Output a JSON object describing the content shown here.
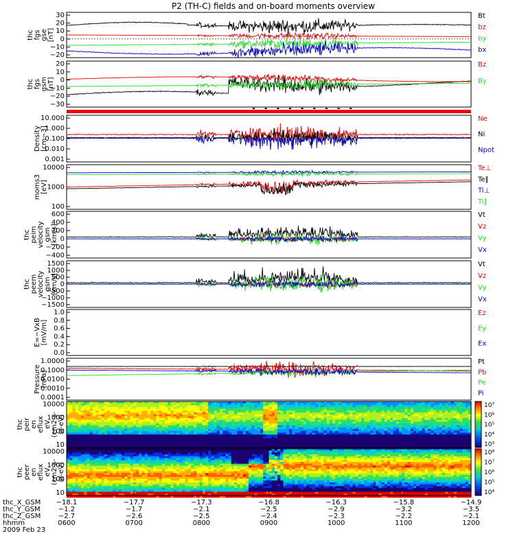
{
  "title": "P2 (TH-C) fields and on-board moments overview",
  "colors": {
    "black": "#000000",
    "red": "#ee0000",
    "green": "#22dd22",
    "blue": "#0000cc"
  },
  "panels": [
    {
      "id": "fgs-gse",
      "ylabel": [
        "thc",
        "fgs",
        "gse",
        "[nT]"
      ],
      "yticks": [
        "30",
        "20",
        "10",
        "0",
        "−10",
        "−20"
      ],
      "legend": [
        {
          "label": "Bt",
          "color": "black"
        },
        {
          "label": "bz",
          "color": "red"
        },
        {
          "label": "by",
          "color": "green"
        },
        {
          "label": "bx",
          "color": "blue"
        }
      ]
    },
    {
      "id": "fgs-gsm",
      "ylabel": [
        "thc",
        "fgs",
        "gsm",
        "[nT]"
      ],
      "yticks": [
        "20",
        "10",
        "0",
        "−10",
        "−20",
        "−30"
      ],
      "legend": [
        {
          "label": "Bz",
          "color": "red"
        },
        {
          "label": "By",
          "color": "green"
        }
      ]
    },
    {
      "id": "density",
      "ylabel": [
        "Density",
        "[cm−3]"
      ],
      "yticks": [
        "10.000",
        "1.000",
        "0.100",
        "0.010",
        "0.001"
      ],
      "legend": [
        {
          "label": "Ne",
          "color": "red"
        },
        {
          "label": "Ni",
          "color": "black"
        },
        {
          "label": "Npot",
          "color": "blue"
        }
      ]
    },
    {
      "id": "temperature",
      "ylabel": [
        "moms3",
        "[eV]"
      ],
      "yticks": [
        "10000",
        "1000",
        "100"
      ],
      "legend": [
        {
          "label": "Te⊥",
          "color": "red"
        },
        {
          "label": "Te∥",
          "color": "black"
        },
        {
          "label": "Ti⊥",
          "color": "blue"
        },
        {
          "label": "Ti∥",
          "color": "green"
        }
      ]
    },
    {
      "id": "peim-velocity",
      "ylabel": [
        "thc",
        "peim",
        "velocity",
        "gsm",
        "[km/s]"
      ],
      "yticks": [
        "600",
        "400",
        "200",
        "0",
        "−200",
        "−400"
      ],
      "legend": [
        {
          "label": "Vt",
          "color": "black"
        },
        {
          "label": "Vz",
          "color": "red"
        },
        {
          "label": "Vy",
          "color": "green"
        },
        {
          "label": "Vx",
          "color": "blue"
        }
      ]
    },
    {
      "id": "peem-velocity",
      "ylabel": [
        "thc",
        "peem",
        "velocity",
        "gsm",
        "[km/s]"
      ],
      "yticks": [
        "1500",
        "1000",
        "500",
        "0",
        "−500",
        "−1000",
        "−1500"
      ],
      "legend": [
        {
          "label": "Vt",
          "color": "black"
        },
        {
          "label": "Vz",
          "color": "red"
        },
        {
          "label": "Vy",
          "color": "green"
        },
        {
          "label": "Vx",
          "color": "blue"
        }
      ]
    },
    {
      "id": "efield",
      "ylabel": [
        "E=−VxB",
        "[mV/m]"
      ],
      "yticks": [
        "1.0",
        "0.8",
        "0.6",
        "0.4",
        "0.2",
        "0.0"
      ],
      "legend": [
        {
          "label": "Ez",
          "color": "red"
        },
        {
          "label": "Ey",
          "color": "green"
        },
        {
          "label": "Ex",
          "color": "blue"
        }
      ]
    },
    {
      "id": "pressure",
      "ylabel": [
        "Pressure",
        "[nPa]"
      ],
      "yticks": [
        "1.0000",
        "0.1000",
        "0.0100",
        "0.0010",
        "0.0001"
      ],
      "legend": [
        {
          "label": "Pt",
          "color": "black"
        },
        {
          "label": "Pb",
          "color": "red"
        },
        {
          "label": "Pe",
          "color": "green"
        },
        {
          "label": "Pi",
          "color": "blue"
        }
      ]
    },
    {
      "id": "peir-spec",
      "ylabel": [
        "thc",
        "peir",
        "en",
        "eflux",
        "eV",
        "(cm2-s-",
        "sr-eV)"
      ],
      "yticks": [
        "10000",
        "1000",
        "100",
        "10"
      ],
      "colorbar": [
        "10⁷",
        "10⁶",
        "10⁵",
        "10⁴",
        "10³"
      ]
    },
    {
      "id": "peer-spec",
      "ylabel": [
        "thc",
        "peer",
        "en",
        "eflux",
        "eV",
        "(cm2-s-",
        "sr-eV)"
      ],
      "yticks": [
        "10000",
        "1000",
        "100",
        "10"
      ],
      "colorbar": [
        "10⁸",
        "10⁷",
        "10⁶",
        "10⁵",
        "10⁴"
      ]
    }
  ],
  "xaxis": {
    "rows": [
      {
        "label": "thc_X_GSM",
        "values": [
          "−18.1",
          "−17.7",
          "−17.3",
          "−16.8",
          "−16.3",
          "−15.8",
          "−14.9"
        ]
      },
      {
        "label": "thc_Y_GSM",
        "values": [
          "−1.2",
          "−1.7",
          "−2.1",
          "−2.5",
          "−2.9",
          "−3.2",
          "−3.5"
        ]
      },
      {
        "label": "thc_Z_GSM",
        "values": [
          "−2.7",
          "−2.6",
          "−2.5",
          "−2.4",
          "−2.3",
          "−2.2",
          "−2.1"
        ]
      },
      {
        "label": "hhmm",
        "values": [
          "0600",
          "0700",
          "0800",
          "0900",
          "1000",
          "1100",
          "1200"
        ]
      }
    ],
    "date": "2009 Feb 23"
  },
  "chart_data": {
    "type": "line",
    "title": "P2 (TH-C) fields and on-board moments overview",
    "x_times": [
      "0600",
      "0700",
      "0800",
      "0900",
      "1000",
      "1100",
      "1200"
    ],
    "series": [
      {
        "name": "Bt",
        "x": [
          6.0,
          6.5,
          7.0,
          7.5,
          7.9,
          8.1,
          8.5,
          8.8,
          9.0,
          9.5,
          10.0,
          10.5,
          11.0,
          11.5,
          12.0
        ],
        "values": [
          17,
          19,
          20,
          21,
          22,
          18,
          15,
          12,
          14,
          13,
          14,
          16,
          16,
          17,
          17
        ]
      },
      {
        "name": "bz",
        "x": [
          6.0,
          6.5,
          7.0,
          7.5,
          7.9,
          8.1,
          8.5,
          8.8,
          9.0,
          9.5,
          10.0,
          10.5,
          11.0,
          11.5,
          12.0
        ],
        "values": [
          6,
          6,
          5,
          4,
          3,
          2,
          2,
          3,
          2,
          3,
          4,
          4,
          4,
          4,
          4
        ]
      },
      {
        "name": "by",
        "x": [
          6.0,
          6.5,
          7.0,
          7.5,
          7.9,
          8.1,
          8.5,
          8.8,
          9.0,
          9.5,
          10.0,
          10.5,
          11.0,
          11.5,
          12.0
        ],
        "values": [
          -9,
          -8,
          -6,
          -5,
          -5,
          -8,
          -6,
          -3,
          -4,
          -2,
          -2,
          -2,
          -3,
          -3,
          -4
        ]
      },
      {
        "name": "bx",
        "x": [
          6.0,
          6.5,
          7.0,
          7.5,
          7.9,
          8.1,
          8.5,
          8.8,
          9.0,
          9.5,
          10.0,
          10.5,
          11.0,
          11.5,
          12.0
        ],
        "values": [
          -14,
          -15,
          -17,
          -18,
          -20,
          -17,
          -14,
          -10,
          -11,
          -10,
          -11,
          -13,
          -14,
          -14,
          -15
        ]
      }
    ]
  }
}
